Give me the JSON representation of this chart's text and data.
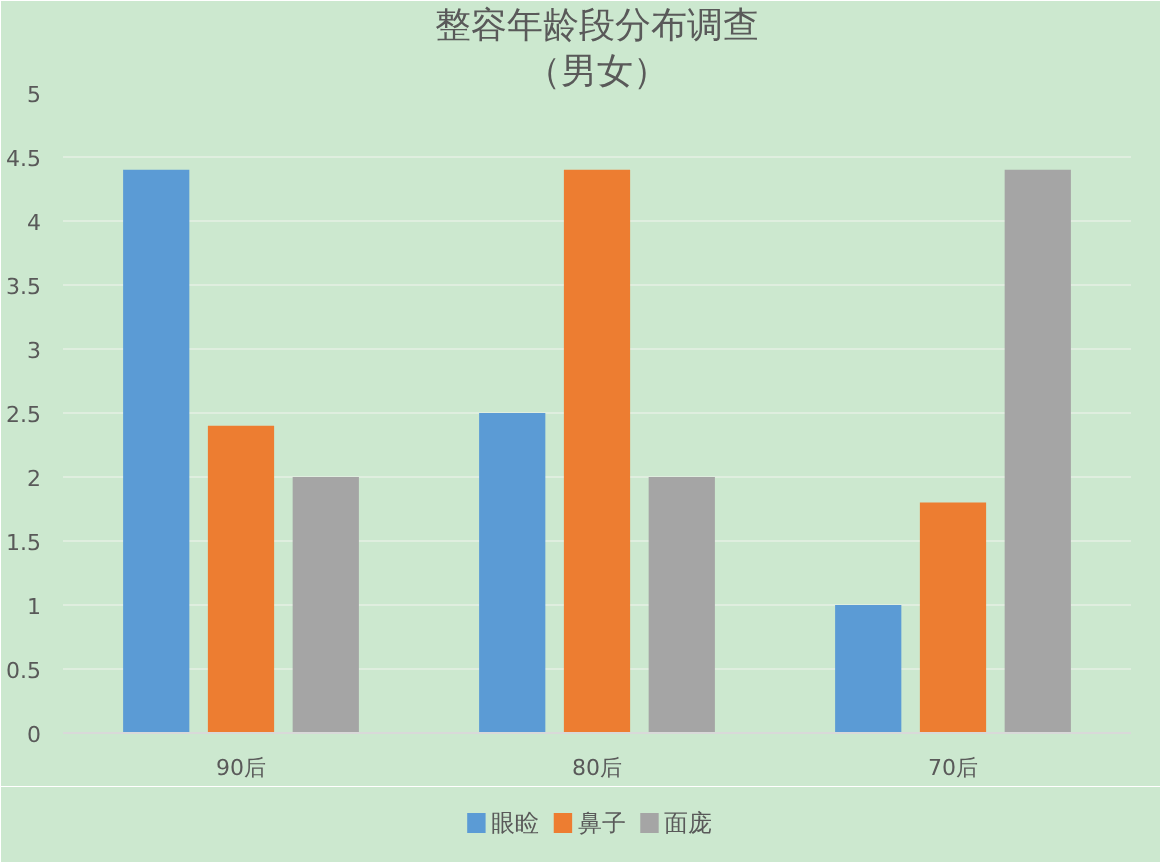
{
  "chart_data": {
    "type": "bar",
    "title": "整容年龄段分布调查",
    "subtitle": "（男女）",
    "categories": [
      "90后",
      "80后",
      "70后"
    ],
    "series": [
      {
        "name": "眼睑",
        "color": "#5b9bd5",
        "values": [
          4.4,
          2.5,
          1.0
        ]
      },
      {
        "name": "鼻子",
        "color": "#ed7d31",
        "values": [
          2.4,
          4.4,
          1.8
        ]
      },
      {
        "name": "面庞",
        "color": "#a5a5a5",
        "values": [
          2.0,
          2.0,
          4.4
        ]
      }
    ],
    "ylim": [
      0,
      5
    ],
    "yticks": [
      0,
      0.5,
      1,
      1.5,
      2,
      2.5,
      3,
      3.5,
      4,
      4.5,
      5
    ],
    "grid": "y",
    "legend": "bottom"
  }
}
